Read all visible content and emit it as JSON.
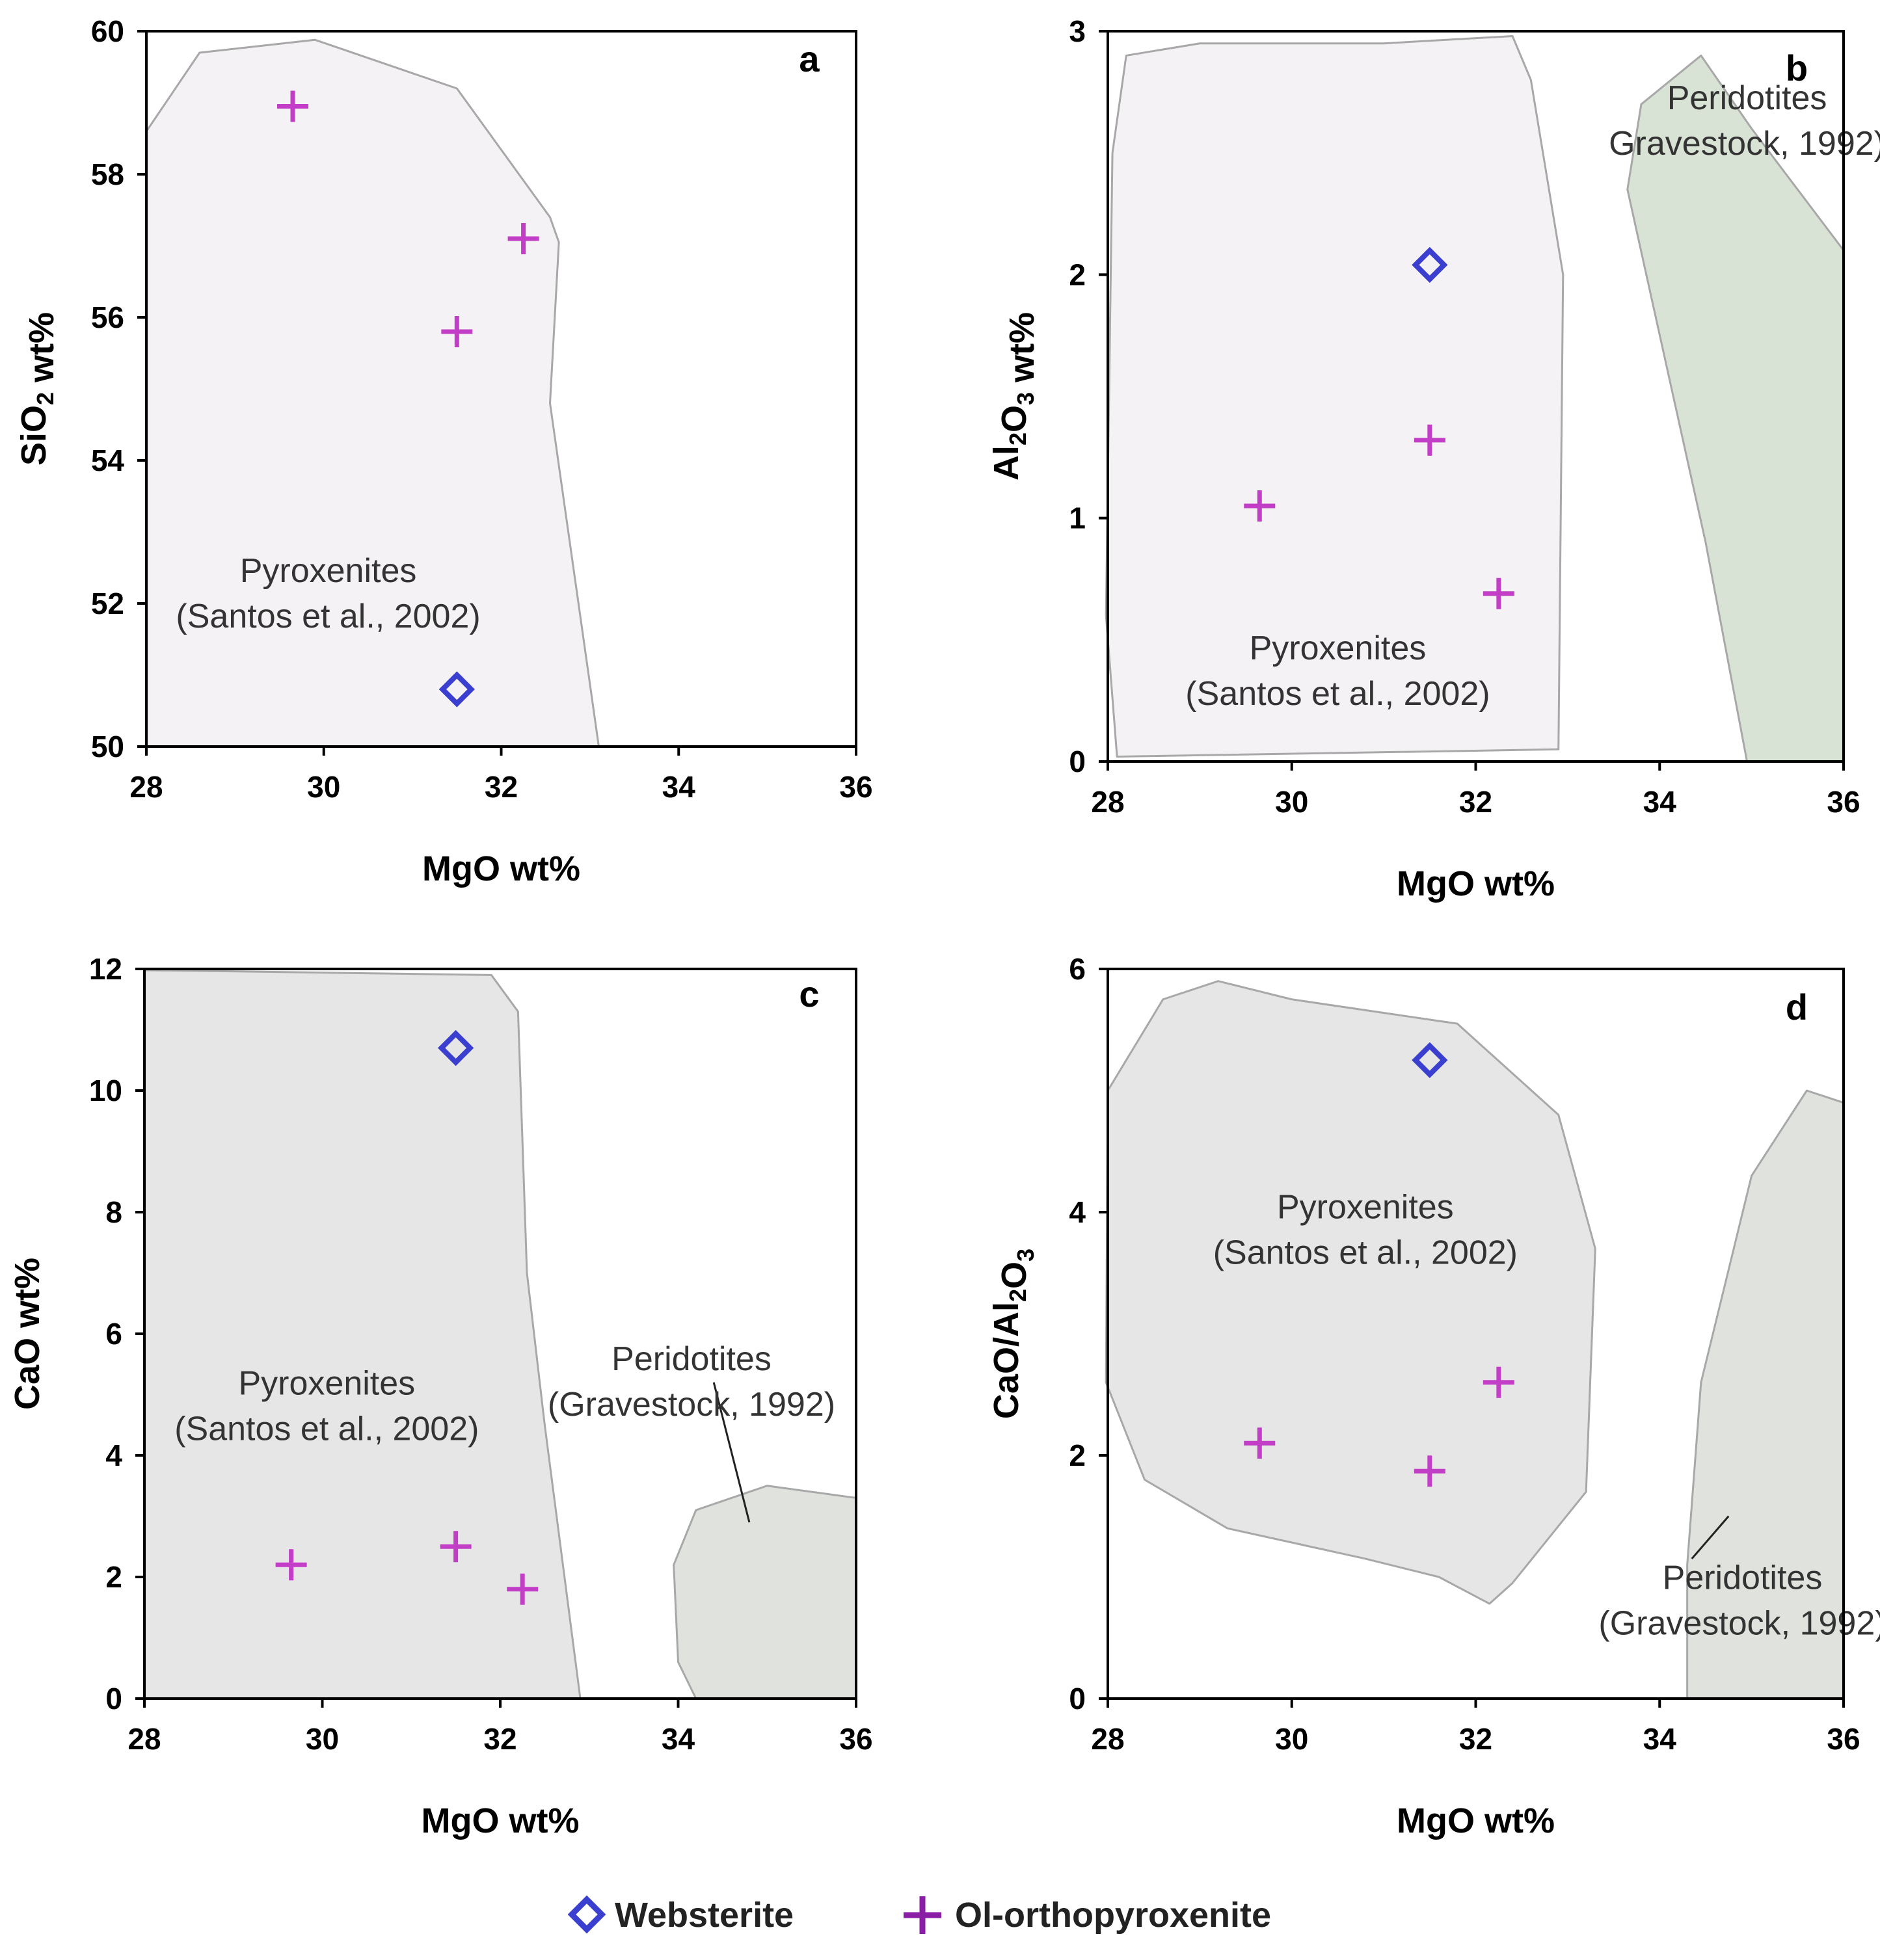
{
  "colors": {
    "websterite": "#3a3fcf",
    "ol_orthopyroxenite": "#c23ec6",
    "pyroxenite_field_light": "#f4f2f4",
    "pyroxenite_field_gray": "#e6e6e6",
    "peridotite_field": "#d9e3d5",
    "peridotite_field_gray": "#dfe2dd",
    "field_edge": "#a8a8a8"
  },
  "legend": {
    "websterite_label": "Websterite",
    "websterite_icon": "diamond-icon",
    "ol_orthopyroxenite_label": "Ol-orthopyroxenite",
    "ol_orthopyroxenite_icon": "plus-icon"
  },
  "chart_data": [
    {
      "panel": "a",
      "type": "scatter",
      "xlabel": "MgO wt%",
      "ylabel": {
        "main": "SiO",
        "sub": "2",
        "tail": " wt%"
      },
      "xlim": [
        28,
        36
      ],
      "ylim": [
        50,
        60
      ],
      "xticks": [
        "28",
        "30",
        "32",
        "34",
        "36"
      ],
      "yticks": [
        "50",
        "52",
        "54",
        "56",
        "58",
        "60"
      ],
      "series": [
        {
          "name": "Websterite",
          "marker": "diamond",
          "points": [
            [
              31.5,
              50.8
            ]
          ]
        },
        {
          "name": "Ol-orthopyroxenite",
          "marker": "plus",
          "points": [
            [
              29.65,
              58.95
            ],
            [
              32.25,
              57.1
            ],
            [
              31.5,
              55.8
            ]
          ]
        }
      ],
      "fields": [
        {
          "name": "pyroxenite-field",
          "fill": "pyroxenite_field_light",
          "outline": [
            [
              28,
              50
            ],
            [
              28,
              58.6
            ],
            [
              28.6,
              59.7
            ],
            [
              29.9,
              59.88
            ],
            [
              31.5,
              59.2
            ],
            [
              32.55,
              57.4
            ],
            [
              32.65,
              57.05
            ],
            [
              32.55,
              54.8
            ],
            [
              33.1,
              50
            ]
          ]
        }
      ],
      "field_labels": [
        {
          "lines": [
            "Pyroxenites",
            "(Santos et al., 2002)"
          ],
          "at": [
            30.05,
            52.3
          ]
        }
      ]
    },
    {
      "panel": "b",
      "type": "scatter",
      "xlabel": "MgO wt%",
      "ylabel": {
        "main": "Al",
        "sub": "2",
        "mid": "O",
        "sub2": "3",
        "tail": " wt%"
      },
      "xlim": [
        28,
        36
      ],
      "ylim": [
        0,
        3
      ],
      "xticks": [
        "28",
        "30",
        "32",
        "34",
        "36"
      ],
      "yticks": [
        "0",
        "1",
        "2",
        "3"
      ],
      "series": [
        {
          "name": "Websterite",
          "marker": "diamond",
          "points": [
            [
              31.5,
              2.04
            ]
          ]
        },
        {
          "name": "Ol-orthopyroxenite",
          "marker": "plus",
          "points": [
            [
              29.65,
              1.05
            ],
            [
              31.5,
              1.32
            ],
            [
              32.25,
              0.69
            ]
          ]
        }
      ],
      "fields": [
        {
          "name": "pyroxenite-field",
          "fill": "pyroxenite_field_light",
          "outline": [
            [
              28.1,
              0.02
            ],
            [
              27.98,
              0.6
            ],
            [
              28.05,
              2.5
            ],
            [
              28.2,
              2.9
            ],
            [
              29,
              2.95
            ],
            [
              31,
              2.95
            ],
            [
              32.4,
              2.98
            ],
            [
              32.6,
              2.8
            ],
            [
              32.95,
              2.0
            ],
            [
              32.9,
              0.05
            ]
          ]
        },
        {
          "name": "peridotite-field",
          "fill": "peridotite_field",
          "outline": [
            [
              34.95,
              0
            ],
            [
              34.5,
              0.9
            ],
            [
              33.65,
              2.35
            ],
            [
              33.8,
              2.7
            ],
            [
              34.45,
              2.9
            ],
            [
              35.0,
              2.6
            ],
            [
              36,
              2.1
            ],
            [
              36,
              0
            ]
          ]
        }
      ],
      "field_labels": [
        {
          "lines": [
            "Pyroxenites",
            "(Santos et al., 2002)"
          ],
          "at": [
            30.5,
            0.42
          ]
        },
        {
          "lines": [
            "Peridotites",
            "Gravestock, 1992)"
          ],
          "at": [
            34.95,
            2.68
          ]
        }
      ]
    },
    {
      "panel": "c",
      "type": "scatter",
      "xlabel": "MgO wt%",
      "ylabel": {
        "main": "CaO wt%"
      },
      "xlim": [
        28,
        36
      ],
      "ylim": [
        0,
        12
      ],
      "xticks": [
        "28",
        "30",
        "32",
        "34",
        "36"
      ],
      "yticks": [
        "0",
        "2",
        "4",
        "6",
        "8",
        "10",
        "12"
      ],
      "series": [
        {
          "name": "Websterite",
          "marker": "diamond",
          "points": [
            [
              31.5,
              10.7
            ]
          ]
        },
        {
          "name": "Ol-orthopyroxenite",
          "marker": "plus",
          "points": [
            [
              29.65,
              2.2
            ],
            [
              31.5,
              2.5
            ],
            [
              32.25,
              1.8
            ]
          ]
        }
      ],
      "fields": [
        {
          "name": "pyroxenite-field",
          "fill": "pyroxenite_field_gray",
          "outline": [
            [
              28,
              0
            ],
            [
              28,
              11.98
            ],
            [
              29.5,
              11.95
            ],
            [
              31.9,
              11.9
            ],
            [
              32.2,
              11.3
            ],
            [
              32.3,
              7.0
            ],
            [
              32.5,
              4.5
            ],
            [
              32.9,
              0
            ]
          ]
        },
        {
          "name": "peridotite-field",
          "fill": "peridotite_field_gray",
          "outline": [
            [
              34.2,
              0
            ],
            [
              34.0,
              0.6
            ],
            [
              33.95,
              2.2
            ],
            [
              34.2,
              3.1
            ],
            [
              35.0,
              3.5
            ],
            [
              36,
              3.3
            ],
            [
              36,
              0
            ]
          ]
        }
      ],
      "field_labels": [
        {
          "lines": [
            "Pyroxenites",
            "(Santos et al., 2002)"
          ],
          "at": [
            30.05,
            5.0
          ]
        },
        {
          "lines": [
            "Peridotites",
            "(Gravestock, 1992)"
          ],
          "at": [
            34.15,
            5.4
          ]
        }
      ],
      "leader": [
        [
          34.4,
          5.2
        ],
        [
          34.8,
          2.9
        ]
      ]
    },
    {
      "panel": "d",
      "type": "scatter",
      "xlabel": "MgO wt%",
      "ylabel": {
        "main": "CaO/Al",
        "sub": "2",
        "mid": "O",
        "sub2": "3"
      },
      "xlim": [
        28,
        36
      ],
      "ylim": [
        0,
        6
      ],
      "xticks": [
        "28",
        "30",
        "32",
        "34",
        "36"
      ],
      "yticks": [
        "0",
        "2",
        "4",
        "6"
      ],
      "series": [
        {
          "name": "Websterite",
          "marker": "diamond",
          "points": [
            [
              31.5,
              5.25
            ]
          ]
        },
        {
          "name": "Ol-orthopyroxenite",
          "marker": "plus",
          "points": [
            [
              29.65,
              2.1
            ],
            [
              31.5,
              1.87
            ],
            [
              32.25,
              2.6
            ]
          ]
        }
      ],
      "fields": [
        {
          "name": "pyroxenite-field",
          "fill": "pyroxenite_field_gray",
          "outline": [
            [
              28,
              5.0
            ],
            [
              28.6,
              5.75
            ],
            [
              29.2,
              5.9
            ],
            [
              30.0,
              5.75
            ],
            [
              31.8,
              5.55
            ],
            [
              32.9,
              4.8
            ],
            [
              33.3,
              3.7
            ],
            [
              33.2,
              1.7
            ],
            [
              32.4,
              0.95
            ],
            [
              32.15,
              0.78
            ],
            [
              31.6,
              1.0
            ],
            [
              30.8,
              1.15
            ],
            [
              29.3,
              1.4
            ],
            [
              28.4,
              1.8
            ],
            [
              27.98,
              2.6
            ]
          ]
        },
        {
          "name": "peridotite-field",
          "fill": "peridotite_field_gray",
          "outline": [
            [
              34.3,
              0
            ],
            [
              34.3,
              1.1
            ],
            [
              34.45,
              2.6
            ],
            [
              35.0,
              4.3
            ],
            [
              35.6,
              5.0
            ],
            [
              36,
              4.9
            ],
            [
              36,
              0
            ]
          ]
        }
      ],
      "field_labels": [
        {
          "lines": [
            "Pyroxenites",
            "(Santos et al., 2002)"
          ],
          "at": [
            30.8,
            3.95
          ]
        },
        {
          "lines": [
            "Peridotites",
            "(Gravestock, 1992)"
          ],
          "at": [
            34.9,
            0.9
          ]
        }
      ],
      "leader": [
        [
          34.75,
          1.5
        ],
        [
          34.35,
          1.15
        ]
      ]
    }
  ]
}
